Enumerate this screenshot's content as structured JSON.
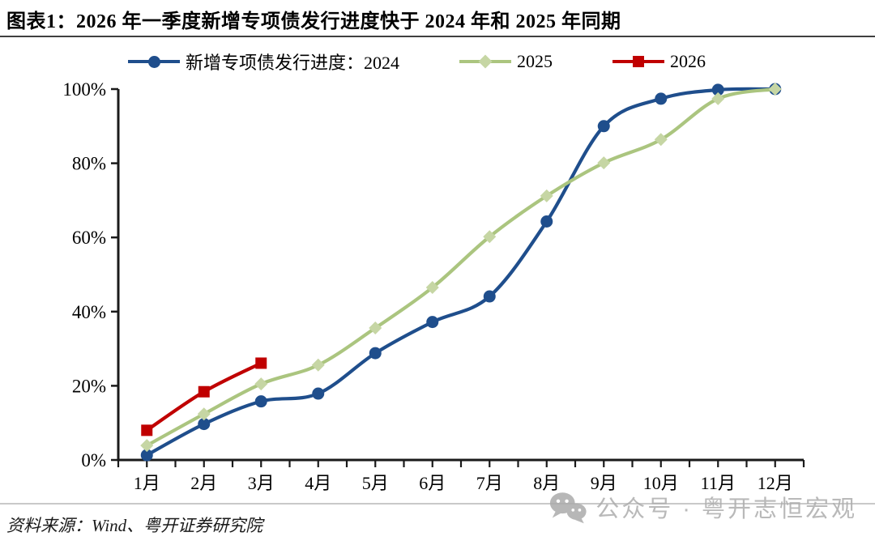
{
  "header": {
    "title": "图表1：2026 年一季度新增专项债发行进度快于 2024 年和 2025 年同期"
  },
  "chart_data": {
    "type": "line",
    "title": "2026 年一季度新增专项债发行进度快于 2024 年和 2025 年同期",
    "categories": [
      "1月",
      "2月",
      "3月",
      "4月",
      "5月",
      "6月",
      "7月",
      "8月",
      "9月",
      "10月",
      "11月",
      "12月"
    ],
    "y_ticks": [
      "0%",
      "20%",
      "40%",
      "60%",
      "80%",
      "100%"
    ],
    "ylim": [
      0,
      100
    ],
    "grid": false,
    "legend_position": "top",
    "axis_color": "#1a1a1a",
    "series": [
      {
        "name": "2024",
        "legend_label": "新增专项债发行进度：2024",
        "color": "#1f4e8c",
        "marker": "circle",
        "values": [
          1.3,
          9.7,
          15.8,
          17.9,
          28.8,
          37.2,
          44.1,
          64.3,
          90.0,
          97.4,
          99.8,
          100.0
        ]
      },
      {
        "name": "2025",
        "legend_label": "2025",
        "color": "#abc57f",
        "marker_color": "#c6d6a4",
        "marker": "diamond",
        "values": [
          3.9,
          12.4,
          20.5,
          25.6,
          35.6,
          46.5,
          60.2,
          71.2,
          80.1,
          86.4,
          97.4,
          100.0
        ]
      },
      {
        "name": "2026",
        "legend_label": "2026",
        "color": "#c00000",
        "marker": "square",
        "values": [
          8.0,
          18.4,
          26.1
        ]
      }
    ]
  },
  "footer": {
    "source": "资料来源：Wind、粤开证券研究院"
  },
  "watermark": {
    "text": "公众号 · 粤开志恒宏观",
    "icon": "wechat-icon"
  }
}
